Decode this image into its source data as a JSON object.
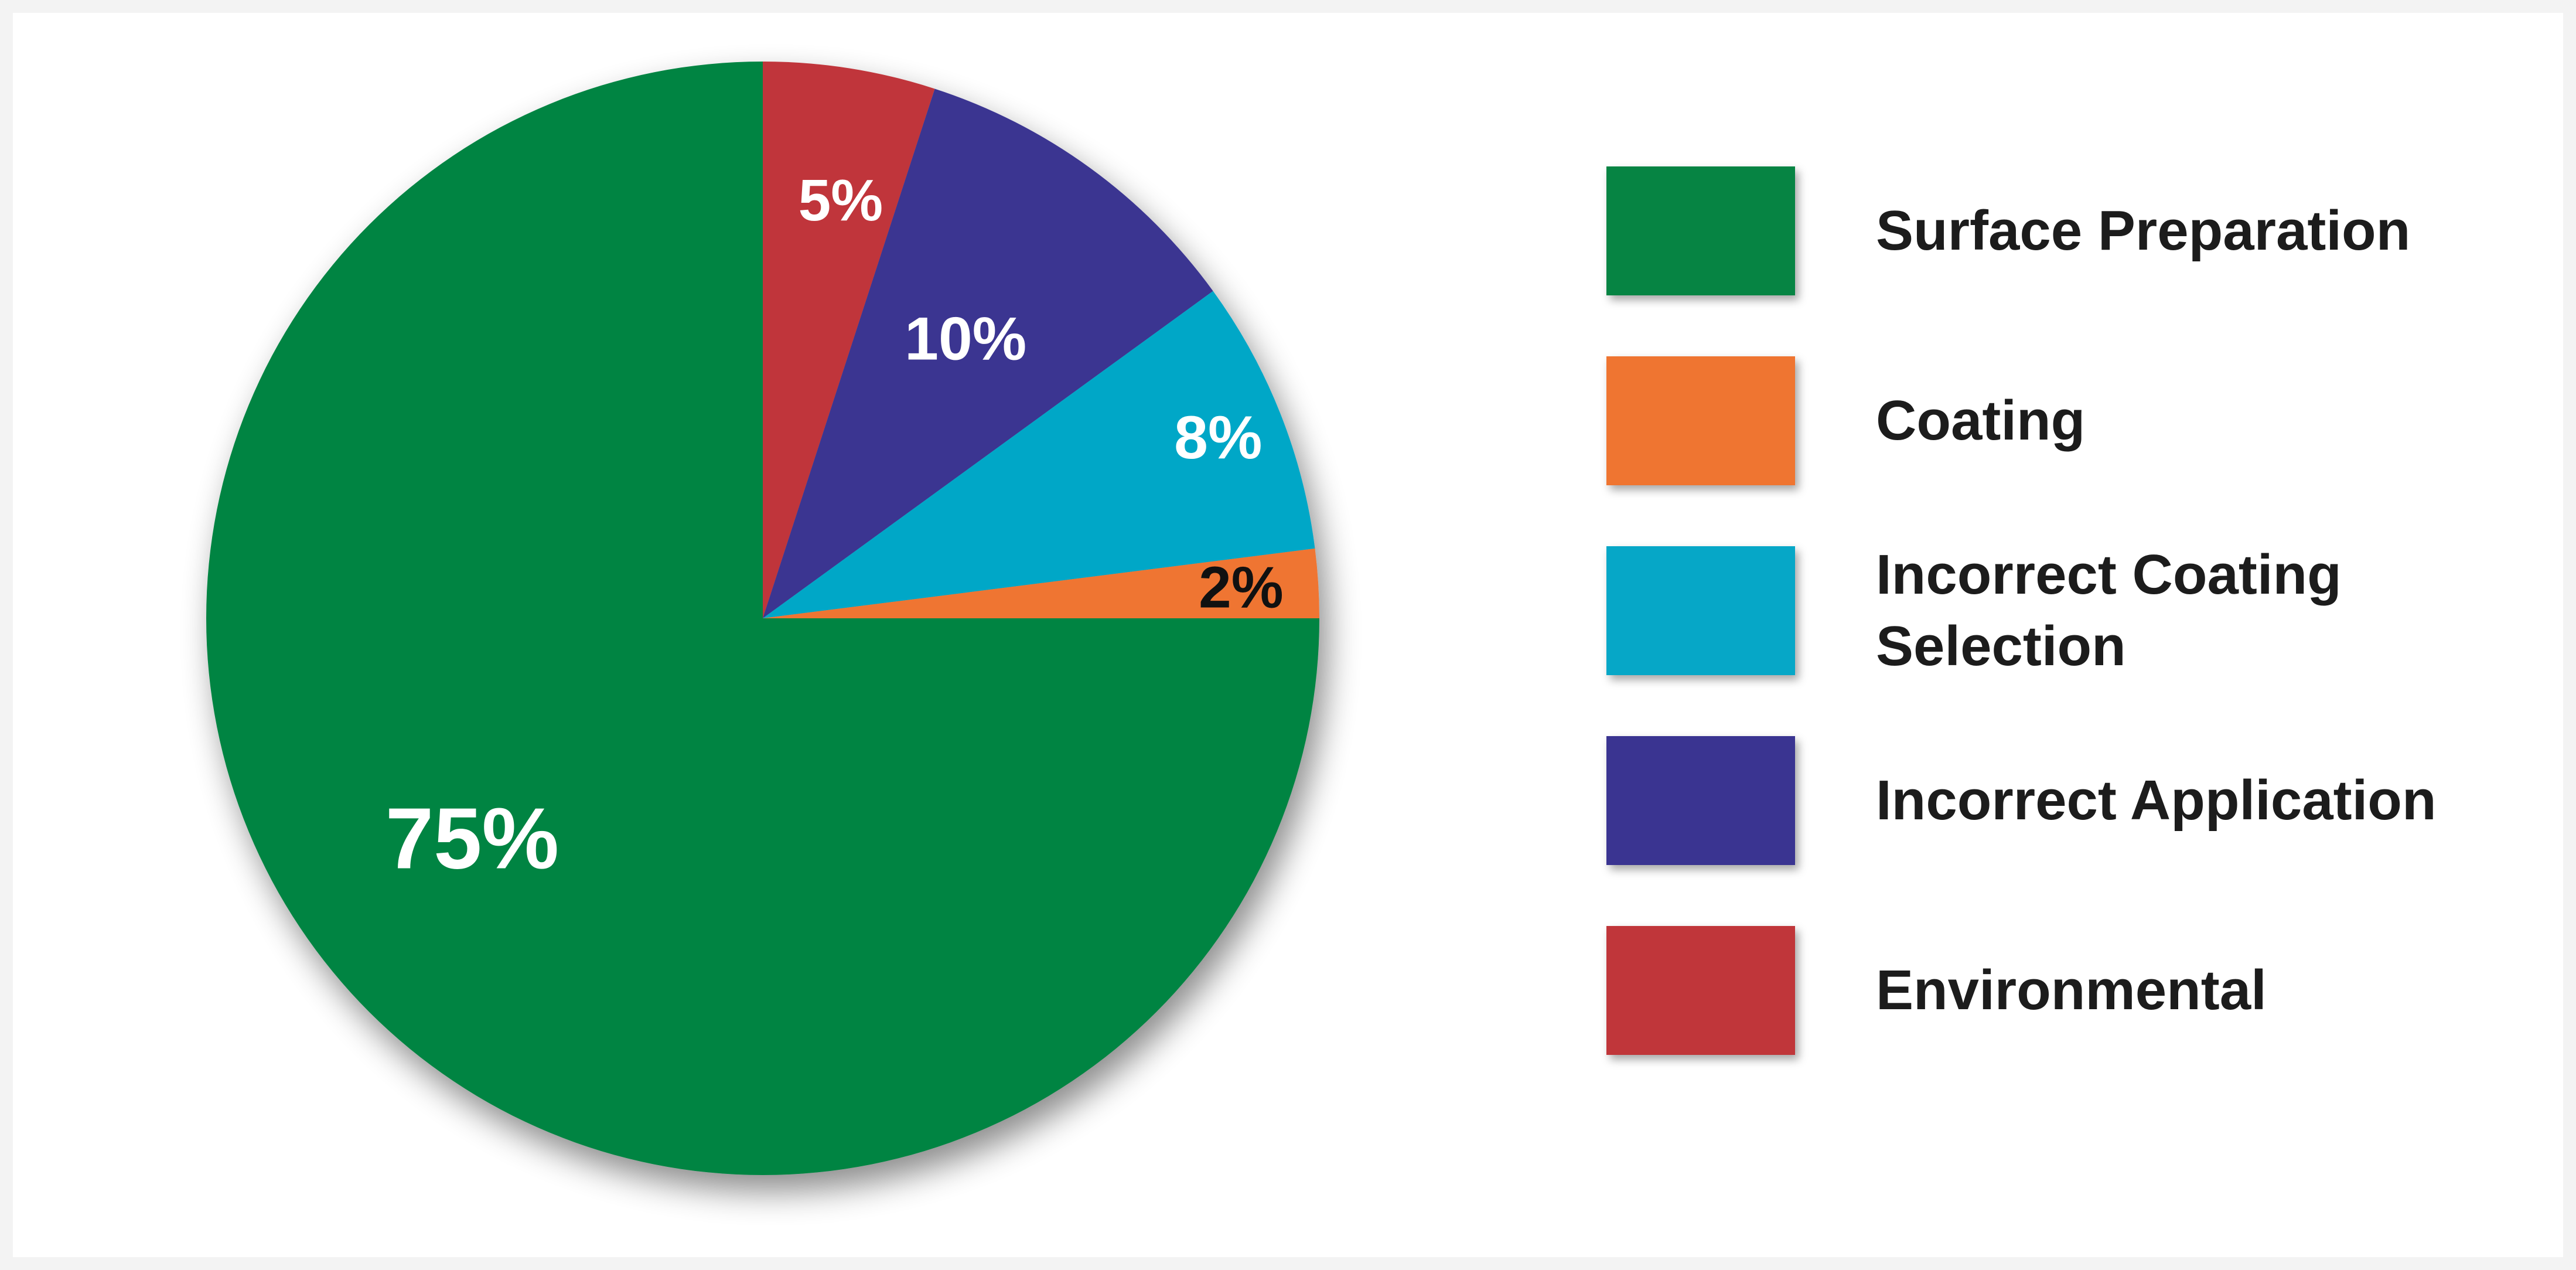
{
  "chart_data": {
    "type": "pie",
    "title": "",
    "slices": [
      {
        "name": "Environmental",
        "value": 5,
        "label": "5%",
        "color": "#c0363a",
        "label_color": "#ffffff"
      },
      {
        "name": "Incorrect Application",
        "value": 10,
        "label": "10%",
        "color": "#3a3491",
        "label_color": "#ffffff"
      },
      {
        "name": "Incorrect Coating Selection",
        "value": 8,
        "label": "8%",
        "color": "#06a7c7",
        "label_color": "#ffffff"
      },
      {
        "name": "Coating",
        "value": 2,
        "label": "2%",
        "color": "#ef7531",
        "label_color": "#111111"
      },
      {
        "name": "Surface Preparation",
        "value": 75,
        "label": "75%",
        "color": "#068443",
        "label_color": "#ffffff"
      }
    ],
    "legend": {
      "placement": "right",
      "items": [
        {
          "label": "Surface Preparation",
          "color": "#068443"
        },
        {
          "label": "Coating",
          "color": "#ef7531"
        },
        {
          "label": "Incorrect Coating Selection",
          "color": "#06a7c7"
        },
        {
          "label": "Incorrect Application",
          "color": "#3a3491"
        },
        {
          "label": "Environmental",
          "color": "#c0363a"
        }
      ]
    }
  }
}
